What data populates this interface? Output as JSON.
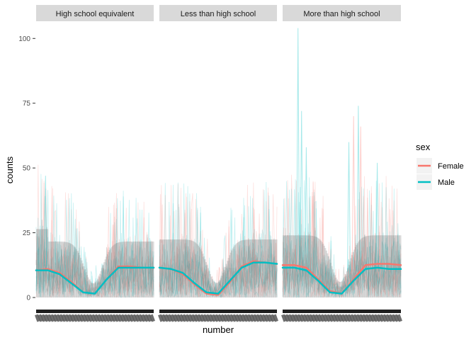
{
  "chart_data": {
    "type": "line",
    "facet_by": "education",
    "facets": [
      {
        "label": "High school equivalent",
        "smooth": {
          "x": [
            0,
            0.1,
            0.2,
            0.3,
            0.4,
            0.5,
            0.6,
            0.7,
            0.8,
            0.9,
            1.0
          ],
          "Female": [
            10.5,
            11.0,
            9.5,
            6.0,
            2.0,
            1.5,
            7.0,
            12.0,
            12.0,
            11.5,
            11.5
          ],
          "Male": [
            10.5,
            10.5,
            9.0,
            5.5,
            2.0,
            1.5,
            7.0,
            11.5,
            11.5,
            11.5,
            11.5
          ]
        }
      },
      {
        "label": "Less than high school",
        "smooth": {
          "x": [
            0,
            0.1,
            0.2,
            0.3,
            0.4,
            0.5,
            0.6,
            0.7,
            0.8,
            0.9,
            1.0
          ],
          "Female": [
            11.5,
            11.0,
            9.0,
            5.0,
            1.5,
            1.0,
            6.0,
            12.0,
            14.0,
            13.5,
            13.0
          ],
          "Male": [
            11.5,
            11.0,
            9.5,
            5.5,
            2.0,
            1.5,
            6.5,
            11.5,
            13.5,
            13.5,
            13.0
          ]
        }
      },
      {
        "label": "More than high school",
        "smooth": {
          "x": [
            0,
            0.1,
            0.2,
            0.3,
            0.4,
            0.5,
            0.6,
            0.7,
            0.8,
            0.9,
            1.0
          ],
          "Female": [
            12.5,
            12.5,
            11.5,
            7.0,
            2.5,
            1.5,
            7.0,
            12.5,
            13.0,
            13.0,
            12.5
          ],
          "Male": [
            11.5,
            11.5,
            10.5,
            6.5,
            2.0,
            1.5,
            6.5,
            11.0,
            11.5,
            11.0,
            11.0
          ]
        }
      }
    ],
    "series": [
      {
        "name": "Female",
        "color": "#F8766D"
      },
      {
        "name": "Male",
        "color": "#00BFC4"
      }
    ],
    "xlabel": "number",
    "ylabel": "counts",
    "yticks": [
      0,
      25,
      50,
      75,
      100
    ],
    "ylim": [
      0,
      105
    ],
    "legend": {
      "title": "sex",
      "placement": "right"
    },
    "grid": false,
    "background": "#ffffff",
    "strip_color": "#D9D9D9"
  }
}
